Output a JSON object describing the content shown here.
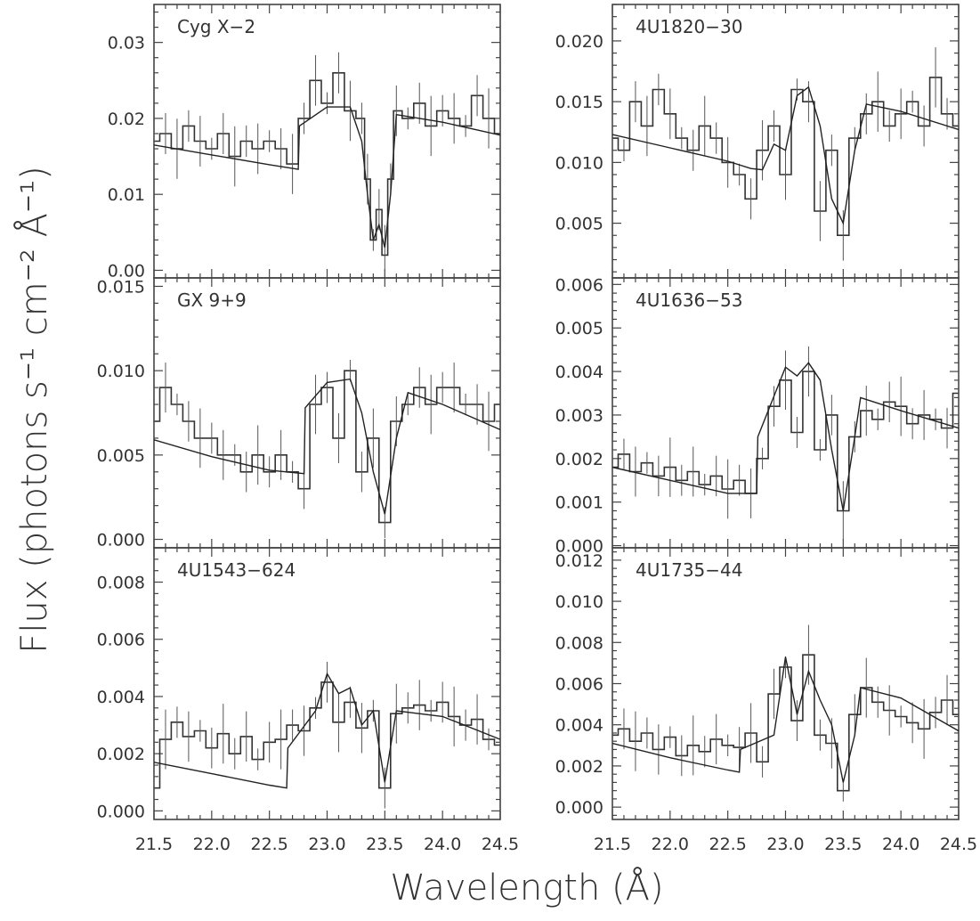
{
  "figure": {
    "xlabel": "Wavelength (Å)",
    "ylabel": "Flux (photons s⁻¹ cm⁻² Å⁻¹)"
  },
  "chart_data": [
    {
      "type": "line",
      "panel_label": "Cyg X−2",
      "xlim": [
        21.5,
        24.5
      ],
      "ylim": [
        -0.001,
        0.035
      ],
      "x_ticks": [
        "21.5",
        "22.0",
        "22.5",
        "23.0",
        "23.5",
        "24.0",
        "24.5"
      ],
      "y_ticks": [
        "0.00",
        "0.01",
        "0.02",
        "0.03"
      ],
      "x_ticks_labeled": false,
      "series": [
        {
          "style": "histogram",
          "x": [
            21.5,
            21.6,
            21.7,
            21.8,
            21.9,
            22.0,
            22.1,
            22.2,
            22.3,
            22.4,
            22.5,
            22.6,
            22.7,
            22.8,
            22.9,
            23.0,
            23.1,
            23.2,
            23.3,
            23.35,
            23.4,
            23.45,
            23.5,
            23.55,
            23.6,
            23.7,
            23.8,
            23.9,
            24.0,
            24.1,
            24.2,
            24.3,
            24.4,
            24.5
          ],
          "y": [
            0.017,
            0.018,
            0.016,
            0.019,
            0.017,
            0.016,
            0.018,
            0.015,
            0.017,
            0.016,
            0.017,
            0.016,
            0.014,
            0.02,
            0.025,
            0.022,
            0.026,
            0.021,
            0.02,
            0.012,
            0.004,
            0.008,
            0.002,
            0.012,
            0.021,
            0.02,
            0.022,
            0.019,
            0.021,
            0.02,
            0.019,
            0.023,
            0.02,
            0.018
          ]
        },
        {
          "style": "model",
          "x": [
            21.5,
            22.0,
            22.5,
            22.75,
            22.76,
            23.0,
            23.2,
            23.3,
            23.35,
            23.4,
            23.45,
            23.5,
            23.55,
            23.6,
            24.0,
            24.5
          ],
          "y": [
            0.0165,
            0.0152,
            0.0139,
            0.0133,
            0.019,
            0.0215,
            0.0215,
            0.017,
            0.01,
            0.004,
            0.006,
            0.003,
            0.01,
            0.0205,
            0.0195,
            0.0178
          ]
        }
      ]
    },
    {
      "type": "line",
      "panel_label": "4U1820−30",
      "xlim": [
        21.5,
        24.5
      ],
      "ylim": [
        0.0005,
        0.023
      ],
      "x_ticks": [
        "21.5",
        "22.0",
        "22.5",
        "23.0",
        "23.5",
        "24.0",
        "24.5"
      ],
      "y_ticks": [
        "0.005",
        "0.010",
        "0.015",
        "0.020"
      ],
      "x_ticks_labeled": false,
      "series": [
        {
          "style": "histogram",
          "x": [
            21.5,
            21.6,
            21.7,
            21.8,
            21.9,
            22.0,
            22.1,
            22.2,
            22.3,
            22.4,
            22.5,
            22.6,
            22.7,
            22.8,
            22.9,
            23.0,
            23.1,
            23.2,
            23.3,
            23.4,
            23.5,
            23.6,
            23.7,
            23.8,
            23.9,
            24.0,
            24.1,
            24.2,
            24.3,
            24.4,
            24.5
          ],
          "y": [
            0.012,
            0.011,
            0.015,
            0.013,
            0.016,
            0.014,
            0.012,
            0.011,
            0.013,
            0.012,
            0.01,
            0.009,
            0.007,
            0.011,
            0.013,
            0.009,
            0.016,
            0.015,
            0.006,
            0.011,
            0.004,
            0.012,
            0.014,
            0.015,
            0.013,
            0.014,
            0.015,
            0.013,
            0.017,
            0.014,
            0.013
          ]
        },
        {
          "style": "model",
          "x": [
            21.5,
            22.0,
            22.5,
            22.7,
            22.8,
            22.9,
            23.0,
            23.1,
            23.2,
            23.3,
            23.4,
            23.5,
            23.6,
            23.7,
            24.0,
            24.5
          ],
          "y": [
            0.0123,
            0.0112,
            0.0101,
            0.0095,
            0.0094,
            0.0115,
            0.011,
            0.0155,
            0.0162,
            0.013,
            0.007,
            0.005,
            0.011,
            0.0148,
            0.0142,
            0.0127
          ]
        }
      ]
    },
    {
      "type": "line",
      "panel_label": "GX 9+9",
      "xlim": [
        21.5,
        24.5
      ],
      "ylim": [
        -0.0005,
        0.0155
      ],
      "x_ticks": [
        "21.5",
        "22.0",
        "22.5",
        "23.0",
        "23.5",
        "24.0",
        "24.5"
      ],
      "y_ticks": [
        "0.000",
        "0.005",
        "0.010",
        "0.015"
      ],
      "x_ticks_labeled": false,
      "series": [
        {
          "style": "histogram",
          "x": [
            21.5,
            21.6,
            21.7,
            21.8,
            21.9,
            22.0,
            22.1,
            22.2,
            22.3,
            22.4,
            22.5,
            22.6,
            22.7,
            22.8,
            22.9,
            23.0,
            23.1,
            23.2,
            23.3,
            23.4,
            23.5,
            23.6,
            23.7,
            23.8,
            23.9,
            24.0,
            24.1,
            24.2,
            24.3,
            24.4,
            24.5
          ],
          "y": [
            0.007,
            0.009,
            0.008,
            0.007,
            0.006,
            0.006,
            0.005,
            0.005,
            0.004,
            0.005,
            0.004,
            0.005,
            0.004,
            0.003,
            0.008,
            0.009,
            0.006,
            0.01,
            0.004,
            0.006,
            0.001,
            0.007,
            0.008,
            0.009,
            0.008,
            0.009,
            0.009,
            0.008,
            0.008,
            0.007,
            0.008
          ]
        },
        {
          "style": "model",
          "x": [
            21.5,
            22.0,
            22.5,
            22.8,
            22.81,
            23.0,
            23.2,
            23.3,
            23.4,
            23.5,
            23.6,
            23.7,
            24.0,
            24.5
          ],
          "y": [
            0.0059,
            0.0049,
            0.0041,
            0.0039,
            0.0078,
            0.0093,
            0.0095,
            0.0075,
            0.004,
            0.0015,
            0.006,
            0.0087,
            0.008,
            0.0065
          ]
        }
      ]
    },
    {
      "type": "line",
      "panel_label": "4U1636−53",
      "xlim": [
        21.5,
        24.5
      ],
      "ylim": [
        -5e-05,
        0.00615
      ],
      "x_ticks": [
        "21.5",
        "22.0",
        "22.5",
        "23.0",
        "23.5",
        "24.0",
        "24.5"
      ],
      "y_ticks": [
        "0.000",
        "0.001",
        "0.002",
        "0.003",
        "0.004",
        "0.005",
        "0.006"
      ],
      "x_ticks_labeled": false,
      "series": [
        {
          "style": "histogram",
          "x": [
            21.5,
            21.6,
            21.7,
            21.8,
            21.9,
            22.0,
            22.1,
            22.2,
            22.3,
            22.4,
            22.5,
            22.6,
            22.7,
            22.8,
            22.9,
            23.0,
            23.1,
            23.2,
            23.3,
            23.4,
            23.5,
            23.6,
            23.7,
            23.8,
            23.9,
            24.0,
            24.1,
            24.2,
            24.3,
            24.4,
            24.5
          ],
          "y": [
            0.0018,
            0.0021,
            0.0017,
            0.0019,
            0.0016,
            0.0018,
            0.0015,
            0.0017,
            0.0014,
            0.0016,
            0.0013,
            0.0015,
            0.0012,
            0.002,
            0.0032,
            0.0038,
            0.0026,
            0.004,
            0.0022,
            0.003,
            0.0008,
            0.0025,
            0.0031,
            0.0029,
            0.0033,
            0.0032,
            0.0028,
            0.003,
            0.0029,
            0.0027,
            0.0035
          ]
        },
        {
          "style": "model",
          "x": [
            21.5,
            22.0,
            22.5,
            22.75,
            22.76,
            23.0,
            23.1,
            23.2,
            23.3,
            23.4,
            23.5,
            23.6,
            23.65,
            24.0,
            24.5
          ],
          "y": [
            0.0018,
            0.0015,
            0.0012,
            0.0012,
            0.0025,
            0.0041,
            0.0039,
            0.0042,
            0.0038,
            0.0022,
            0.0008,
            0.0025,
            0.0034,
            0.0031,
            0.0027
          ]
        }
      ]
    },
    {
      "type": "line",
      "panel_label": "4U1543−624",
      "xlim": [
        21.5,
        24.5
      ],
      "ylim": [
        -0.0003,
        0.0092
      ],
      "x_ticks": [
        "21.5",
        "22.0",
        "22.5",
        "23.0",
        "23.5",
        "24.0",
        "24.5"
      ],
      "y_ticks": [
        "0.000",
        "0.002",
        "0.004",
        "0.006",
        "0.008"
      ],
      "x_ticks_labeled": true,
      "series": [
        {
          "style": "histogram",
          "x": [
            21.5,
            21.6,
            21.7,
            21.8,
            21.9,
            22.0,
            22.1,
            22.2,
            22.3,
            22.4,
            22.5,
            22.6,
            22.7,
            22.8,
            22.9,
            23.0,
            23.1,
            23.2,
            23.3,
            23.4,
            23.5,
            23.6,
            23.7,
            23.8,
            23.9,
            24.0,
            24.1,
            24.2,
            24.3,
            24.4,
            24.5
          ],
          "y": [
            0.0008,
            0.0025,
            0.0031,
            0.0026,
            0.0028,
            0.0022,
            0.0027,
            0.002,
            0.0026,
            0.0018,
            0.0024,
            0.0025,
            0.003,
            0.0028,
            0.0036,
            0.0045,
            0.0031,
            0.0038,
            0.0029,
            0.0035,
            0.0008,
            0.0034,
            0.0036,
            0.0037,
            0.0035,
            0.0038,
            0.0033,
            0.003,
            0.0032,
            0.0025,
            0.0023
          ]
        },
        {
          "style": "model",
          "x": [
            21.5,
            22.0,
            22.5,
            22.65,
            22.66,
            22.9,
            23.0,
            23.1,
            23.2,
            23.3,
            23.4,
            23.5,
            23.6,
            24.0,
            24.5
          ],
          "y": [
            0.0017,
            0.0013,
            0.0009,
            0.0008,
            0.0022,
            0.0035,
            0.0048,
            0.0041,
            0.0043,
            0.003,
            0.0035,
            0.001,
            0.0035,
            0.0033,
            0.0025
          ]
        }
      ]
    },
    {
      "type": "line",
      "panel_label": "4U1735−44",
      "xlim": [
        21.5,
        24.5
      ],
      "ylim": [
        -0.0006,
        0.0126
      ],
      "x_ticks": [
        "21.5",
        "22.0",
        "22.5",
        "23.0",
        "23.5",
        "24.0",
        "24.5"
      ],
      "y_ticks": [
        "0.000",
        "0.002",
        "0.004",
        "0.006",
        "0.008",
        "0.010",
        "0.012"
      ],
      "x_ticks_labeled": true,
      "series": [
        {
          "style": "histogram",
          "x": [
            21.5,
            21.6,
            21.7,
            21.8,
            21.9,
            22.0,
            22.1,
            22.2,
            22.3,
            22.4,
            22.5,
            22.6,
            22.7,
            22.8,
            22.9,
            23.0,
            23.1,
            23.2,
            23.3,
            23.4,
            23.5,
            23.6,
            23.7,
            23.8,
            23.9,
            24.0,
            24.1,
            24.2,
            24.3,
            24.4,
            24.5
          ],
          "y": [
            0.0035,
            0.0038,
            0.0032,
            0.0036,
            0.0028,
            0.0034,
            0.0025,
            0.003,
            0.0027,
            0.0033,
            0.003,
            0.0029,
            0.0036,
            0.0022,
            0.0055,
            0.0068,
            0.0042,
            0.0074,
            0.0035,
            0.0031,
            0.0008,
            0.0045,
            0.0058,
            0.0051,
            0.0047,
            0.0044,
            0.0041,
            0.0038,
            0.0046,
            0.0052,
            0.0045
          ]
        },
        {
          "style": "model",
          "x": [
            21.5,
            22.0,
            22.5,
            22.6,
            22.61,
            22.9,
            23.0,
            23.1,
            23.2,
            23.3,
            23.4,
            23.5,
            23.6,
            23.65,
            24.0,
            24.5
          ],
          "y": [
            0.0031,
            0.0024,
            0.0018,
            0.0017,
            0.0028,
            0.0035,
            0.0073,
            0.0045,
            0.0066,
            0.0052,
            0.004,
            0.0012,
            0.0035,
            0.0058,
            0.0053,
            0.0037
          ]
        }
      ]
    }
  ]
}
